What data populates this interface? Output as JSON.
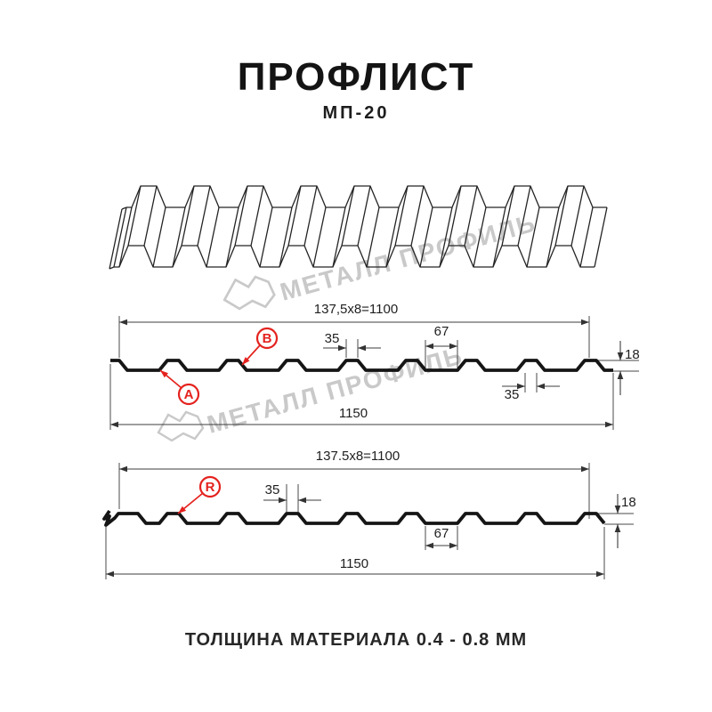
{
  "header": {
    "title": "ПРОФЛИСТ",
    "subtitle": "МП-20"
  },
  "footer": {
    "text": "ТОЛЩИНА МАТЕРИАЛА 0.4 - 0.8 ММ"
  },
  "watermark": {
    "text": "МЕТАЛЛ ПРОФИЛЬ",
    "color": "#c9c9c9"
  },
  "colors": {
    "line": "#1a1a1a",
    "accent": "#e4221e"
  },
  "drawing": {
    "profile_name": "МП-20",
    "rib_count_3d": 9,
    "rib_count_section": 8,
    "sections": [
      {
        "id": "section-ab",
        "labels": [
          {
            "text": "A",
            "target": "valley"
          },
          {
            "text": "B",
            "target": "rib-slope"
          }
        ],
        "dims": {
          "pitch_total": "137,5x8=1100",
          "rib_top_width": "35",
          "valley_width": "67",
          "height": "18",
          "rib_bottom_width": "35",
          "overall_width": "1150"
        }
      },
      {
        "id": "section-r",
        "labels": [
          {
            "text": "R",
            "target": "rib-top"
          }
        ],
        "dims": {
          "pitch_total": "137.5x8=1100",
          "rib_top_width": "35",
          "valley_width": "67",
          "height": "18",
          "overall_width": "1150"
        }
      }
    ]
  }
}
